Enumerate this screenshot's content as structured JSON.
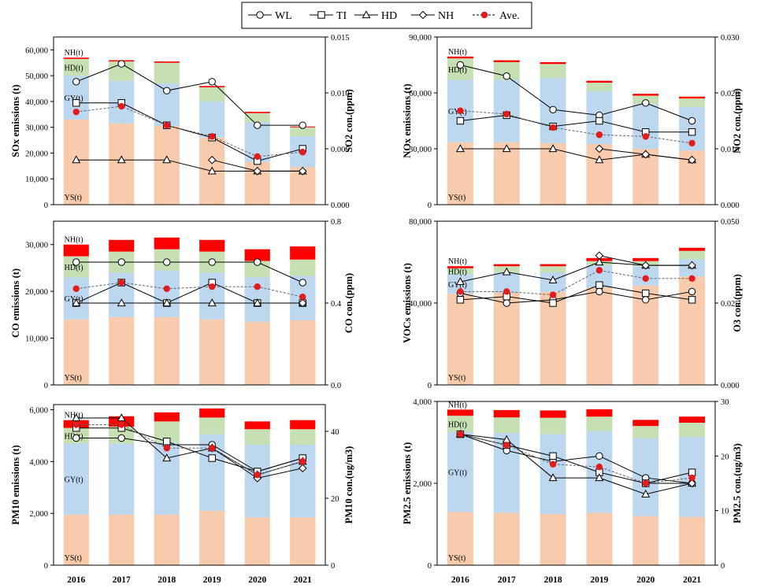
{
  "colors": {
    "YS": "#f8cbad",
    "GY": "#bdd7ee",
    "HD": "#c6e0b4",
    "NH": "#ff0000",
    "ave": "#e41a1c"
  },
  "legend": [
    {
      "key": "WL",
      "label": "WL",
      "marker": "circle"
    },
    {
      "key": "TI",
      "label": "TI",
      "marker": "square"
    },
    {
      "key": "HD",
      "label": "HD",
      "marker": "triangle"
    },
    {
      "key": "NH",
      "label": "NH",
      "marker": "diamond"
    },
    {
      "key": "ave",
      "label": "Ave.",
      "marker": "dot"
    }
  ],
  "chart_data": [
    {
      "id": "so2",
      "type": "bar",
      "categories": [
        "2016",
        "2017",
        "2018",
        "2019",
        "2020",
        "2021"
      ],
      "emission_label": "SOx emissions (t)",
      "concentration_label": "SO2 con.(ppm)",
      "left_ticks": [
        "0",
        "10,000",
        "20,000",
        "30,000",
        "40,000",
        "50,000",
        "60,000"
      ],
      "right_ticks": [
        "0.000",
        "0.005",
        "0.010",
        "0.015"
      ],
      "ylim_left": [
        0,
        65000
      ],
      "ylim_right": [
        0,
        0.015
      ],
      "stack_labels": {
        "NH": "NH(t)",
        "HD": "HD(t)",
        "GY": "GY(t)",
        "YS": "YS(t)"
      },
      "series": [
        {
          "name": "YS(t)",
          "values": [
            33000,
            31500,
            30500,
            26000,
            16500,
            14500
          ]
        },
        {
          "name": "GY(t)",
          "values": [
            17000,
            16500,
            16500,
            14000,
            15500,
            12000
          ]
        },
        {
          "name": "HD(t)",
          "values": [
            6500,
            7500,
            8000,
            5500,
            3500,
            3500
          ]
        },
        {
          "name": "NH(t)",
          "values": [
            500,
            500,
            500,
            500,
            500,
            300
          ]
        }
      ],
      "lines": [
        {
          "name": "WL",
          "values": [
            0.011,
            0.0126,
            0.0102,
            0.011,
            0.0071,
            0.0071
          ]
        },
        {
          "name": "TI",
          "values": [
            0.0091,
            0.0091,
            0.0071,
            0.006,
            0.0039,
            0.005
          ]
        },
        {
          "name": "HD",
          "values": [
            0.004,
            0.004,
            0.004,
            0.003,
            0.003,
            0.003
          ]
        },
        {
          "name": "NH",
          "values": [
            null,
            null,
            null,
            0.004,
            0.003,
            0.003
          ]
        },
        {
          "name": "Ave.",
          "values": [
            0.0083,
            0.0088,
            0.0071,
            0.0061,
            0.0043,
            0.0047
          ]
        }
      ]
    },
    {
      "id": "no2",
      "type": "bar",
      "categories": [
        "2016",
        "2017",
        "2018",
        "2019",
        "2020",
        "2021"
      ],
      "emission_label": "NOx emissions (t)",
      "concentration_label": "NO2 con.(ppm)",
      "left_ticks": [
        "0",
        "30,000",
        "60,000",
        "90,000"
      ],
      "right_ticks": [
        "0.000",
        "0.010",
        "0.020",
        "0.030"
      ],
      "ylim_left": [
        0,
        90000
      ],
      "ylim_right": [
        0,
        0.03
      ],
      "stack_labels": {
        "NH": "NH(t)",
        "HD": "HD(t)",
        "GY": "GY(t)",
        "YS": "YS(t)"
      },
      "series": [
        {
          "name": "YS(t)",
          "values": [
            33500,
            33500,
            33000,
            32500,
            30000,
            29000
          ]
        },
        {
          "name": "GY(t)",
          "values": [
            33500,
            33500,
            35000,
            28500,
            24000,
            23500
          ]
        },
        {
          "name": "HD(t)",
          "values": [
            11500,
            9500,
            7500,
            4500,
            4500,
            4500
          ]
        },
        {
          "name": "NH(t)",
          "values": [
            1000,
            1000,
            1000,
            1000,
            1000,
            1000
          ]
        }
      ],
      "lines": [
        {
          "name": "WL",
          "values": [
            0.025,
            0.023,
            0.017,
            0.016,
            0.0182,
            0.015
          ]
        },
        {
          "name": "TI",
          "values": [
            0.015,
            0.016,
            0.014,
            0.015,
            0.013,
            0.013
          ]
        },
        {
          "name": "HD",
          "values": [
            0.01,
            0.01,
            0.01,
            0.008,
            0.009,
            0.008
          ]
        },
        {
          "name": "NH",
          "values": [
            null,
            null,
            null,
            0.01,
            0.009,
            0.008
          ]
        },
        {
          "name": "Ave.",
          "values": [
            0.0168,
            0.0162,
            0.0138,
            0.0125,
            0.0122,
            0.011
          ]
        }
      ]
    },
    {
      "id": "co",
      "type": "bar",
      "categories": [
        "2016",
        "2017",
        "2018",
        "2019",
        "2020",
        "2021"
      ],
      "emission_label": "CO emissions (t)",
      "concentration_label": "CO con.(ppm)",
      "left_ticks": [
        "0",
        "10,000",
        "20,000",
        "30,000"
      ],
      "right_ticks": [
        "0.0",
        "0.4",
        "0.8"
      ],
      "ylim_left": [
        0,
        35000
      ],
      "ylim_right": [
        0,
        0.8
      ],
      "stack_labels": {
        "NH": "NH(t)",
        "HD": "HD(t)",
        "GY": "GY(t)",
        "YS": "YS(t)"
      },
      "series": [
        {
          "name": "YS(t)",
          "values": [
            14000,
            14500,
            14500,
            14000,
            13500,
            13800
          ]
        },
        {
          "name": "GY(t)",
          "values": [
            9000,
            9500,
            10000,
            10000,
            9500,
            9500
          ]
        },
        {
          "name": "HD(t)",
          "values": [
            4500,
            4500,
            4500,
            4500,
            3500,
            3500
          ]
        },
        {
          "name": "NH(t)",
          "values": [
            2500,
            2500,
            2500,
            2500,
            2500,
            2800
          ]
        }
      ],
      "lines": [
        {
          "name": "WL",
          "values": [
            0.6,
            0.6,
            0.6,
            0.6,
            0.6,
            0.5
          ]
        },
        {
          "name": "TI",
          "values": [
            0.4,
            0.5,
            0.4,
            0.5,
            0.4,
            0.4
          ]
        },
        {
          "name": "HD",
          "values": [
            0.4,
            0.4,
            0.4,
            0.4,
            0.4,
            0.4
          ]
        },
        {
          "name": "NH",
          "values": [
            null,
            null,
            null,
            null,
            null,
            0.4
          ]
        },
        {
          "name": "Ave.",
          "values": [
            0.47,
            0.5,
            0.47,
            0.48,
            0.48,
            0.43
          ]
        }
      ]
    },
    {
      "id": "o3",
      "type": "bar",
      "categories": [
        "2016",
        "2017",
        "2018",
        "2019",
        "2020",
        "2021"
      ],
      "emission_label": "VOCs emissions (t)",
      "concentration_label": "O3 con.(ppm)",
      "left_ticks": [
        "0",
        "40,000",
        "80,000"
      ],
      "right_ticks": [
        "0.000",
        "0.025",
        "0.050"
      ],
      "ylim_left": [
        0,
        80000
      ],
      "ylim_right": [
        0,
        0.05
      ],
      "stack_labels": {
        "NH": "NH(t)",
        "HD": "HD(t)",
        "GY": "GY(t)",
        "YS": "YS(t)"
      },
      "series": [
        {
          "name": "YS(t)",
          "values": [
            44500,
            45000,
            45500,
            47500,
            48500,
            53000
          ]
        },
        {
          "name": "GY(t)",
          "values": [
            9500,
            10000,
            9500,
            11000,
            9500,
            8500
          ]
        },
        {
          "name": "HD(t)",
          "values": [
            3000,
            3000,
            3000,
            2000,
            2500,
            4000
          ]
        },
        {
          "name": "NH(t)",
          "values": [
            1000,
            1000,
            1000,
            1500,
            1500,
            1500
          ]
        }
      ],
      "lines": [
        {
          "name": "WL",
          "values": [
            0.028,
            0.025,
            0.026,
            0.0285,
            0.026,
            0.0285
          ]
        },
        {
          "name": "TI",
          "values": [
            0.026,
            0.027,
            0.025,
            0.0305,
            0.028,
            0.026
          ]
        },
        {
          "name": "HD",
          "values": [
            0.0315,
            0.0345,
            0.032,
            0.0375,
            0.0365,
            0.0365
          ]
        },
        {
          "name": "NH",
          "values": [
            null,
            null,
            null,
            0.0395,
            0.0365,
            0.0365
          ]
        },
        {
          "name": "Ave.",
          "values": [
            0.0285,
            0.0285,
            0.0275,
            0.035,
            0.0325,
            0.0325
          ]
        }
      ]
    },
    {
      "id": "pm10",
      "type": "bar",
      "categories": [
        "2016",
        "2017",
        "2018",
        "2019",
        "2020",
        "2021"
      ],
      "emission_label": "PM10 emissions (t)",
      "concentration_label": "PM10 con.(ug/m3)",
      "left_ticks": [
        "0",
        "2,000",
        "4,000",
        "6,000"
      ],
      "right_ticks": [
        "0",
        "20",
        "40"
      ],
      "ylim_left": [
        0,
        6200
      ],
      "ylim_right": [
        0,
        48
      ],
      "stack_labels": {
        "NH": "NH(t)",
        "HD": "HD(t)",
        "GY": "GY(t)",
        "YS": "YS(t)"
      },
      "series": [
        {
          "name": "YS(t)",
          "values": [
            1950,
            1950,
            1950,
            2100,
            1850,
            1850
          ]
        },
        {
          "name": "GY(t)",
          "values": [
            2750,
            2750,
            2800,
            2950,
            2800,
            2800
          ]
        },
        {
          "name": "HD(t)",
          "values": [
            600,
            650,
            800,
            650,
            600,
            600
          ]
        },
        {
          "name": "NH(t)",
          "values": [
            300,
            400,
            350,
            350,
            300,
            350
          ]
        }
      ],
      "lines": [
        {
          "name": "WL",
          "values": [
            38,
            38,
            36,
            36,
            28,
            32
          ]
        },
        {
          "name": "TI",
          "values": [
            41,
            41,
            37,
            32,
            28,
            32
          ]
        },
        {
          "name": "HD",
          "values": [
            44,
            44,
            32,
            35,
            27,
            31
          ]
        },
        {
          "name": "NH",
          "values": [
            null,
            null,
            null,
            35,
            26,
            29
          ]
        },
        {
          "name": "Ave.",
          "values": [
            42,
            42,
            35,
            35,
            27,
            31
          ]
        }
      ]
    },
    {
      "id": "pm25",
      "type": "bar",
      "categories": [
        "2016",
        "2017",
        "2018",
        "2019",
        "2020",
        "2021"
      ],
      "emission_label": "PM2.5 emissions (t)",
      "concentration_label": "PM2.5 con.(ug/m3)",
      "left_ticks": [
        "0",
        "2,000",
        "4,000"
      ],
      "right_ticks": [
        "0",
        "10",
        "20",
        "30"
      ],
      "ylim_left": [
        0,
        4000
      ],
      "ylim_right": [
        0,
        30
      ],
      "stack_labels": {
        "NH": "NH(t)",
        "HD": "HD(t)",
        "GY": "GY(t)",
        "YS": "YS(t)"
      },
      "series": [
        {
          "name": "YS(t)",
          "values": [
            1300,
            1280,
            1250,
            1280,
            1200,
            1180
          ]
        },
        {
          "name": "GY(t)",
          "values": [
            1950,
            1950,
            1950,
            2000,
            1900,
            1950
          ]
        },
        {
          "name": "HD(t)",
          "values": [
            400,
            380,
            400,
            350,
            300,
            350
          ]
        },
        {
          "name": "NH(t)",
          "values": [
            150,
            180,
            180,
            180,
            150,
            150
          ]
        }
      ],
      "lines": [
        {
          "name": "WL",
          "values": [
            24,
            21,
            19,
            20,
            16,
            15
          ]
        },
        {
          "name": "TI",
          "values": [
            24,
            22,
            20,
            17,
            15,
            17
          ]
        },
        {
          "name": "HD",
          "values": [
            24,
            23,
            16,
            16,
            13,
            15
          ]
        },
        {
          "name": "NH",
          "values": [
            null,
            null,
            null,
            null,
            15,
            15
          ]
        },
        {
          "name": "Ave.",
          "values": [
            24,
            22,
            18.5,
            18,
            15,
            16
          ]
        }
      ]
    }
  ]
}
